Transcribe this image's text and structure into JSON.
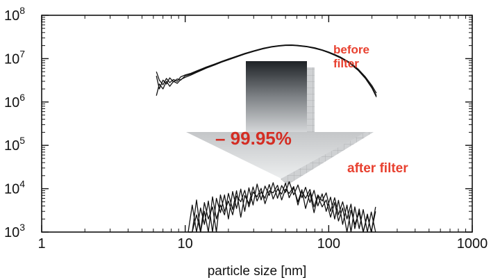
{
  "chart_data": {
    "type": "line",
    "title": "",
    "xlabel": "particle size [nm]",
    "ylabel": "",
    "x_scale": "log",
    "y_scale": "log",
    "xlim": [
      1,
      1000
    ],
    "ylim": [
      1000,
      100000000
    ],
    "grid": false,
    "x_ticks": [
      {
        "value": 1,
        "label": "1"
      },
      {
        "value": 10,
        "label": "10"
      },
      {
        "value": 100,
        "label": "100"
      },
      {
        "value": 1000,
        "label": "1000"
      }
    ],
    "y_ticks": [
      {
        "value": 1000,
        "base": "10",
        "exp": "3"
      },
      {
        "value": 10000,
        "base": "10",
        "exp": "4"
      },
      {
        "value": 100000,
        "base": "10",
        "exp": "5"
      },
      {
        "value": 1000000,
        "base": "10",
        "exp": "6"
      },
      {
        "value": 10000000,
        "base": "10",
        "exp": "7"
      },
      {
        "value": 100000000,
        "base": "10",
        "exp": "8"
      }
    ],
    "annotations": {
      "before_line1": "before",
      "before_line2": "filter",
      "after": "after filter",
      "reduction": "– 99.95%"
    },
    "series": [
      {
        "x": [
          6.3,
          6.6,
          7.0,
          7.4,
          7.8,
          8.3,
          8.8,
          9.3,
          10,
          11,
          12,
          13,
          14,
          16,
          18,
          20,
          23,
          26,
          30,
          35,
          40,
          45,
          50,
          55,
          60,
          70,
          80,
          90,
          100,
          110,
          120,
          140,
          160,
          180,
          200,
          215
        ],
        "y": [
          5000000,
          3200000,
          2500000,
          3500000,
          2800000,
          3300000,
          3000000,
          3800000,
          4200000,
          4600000,
          5200000,
          5800000,
          6400000,
          7500000,
          8700000,
          9800000,
          11500000,
          13200000,
          15200000,
          17400000,
          19000000,
          20000000,
          20600000,
          20700000,
          20400000,
          19300000,
          17800000,
          16000000,
          14200000,
          12500000,
          11000000,
          8200000,
          5800000,
          3800000,
          2400000,
          1600000
        ]
      },
      {
        "x": [
          6.3,
          6.6,
          7.0,
          7.4,
          7.8,
          8.3,
          8.8,
          9.3,
          10,
          11,
          12,
          13,
          14,
          16,
          18,
          20,
          23,
          26,
          30,
          35,
          40,
          45,
          50,
          55,
          60,
          70,
          80,
          90,
          100,
          110,
          120,
          140,
          160,
          180,
          200,
          215
        ],
        "y": [
          4000000,
          2000000,
          3200000,
          2600000,
          3600000,
          2900000,
          3400000,
          3200000,
          4000000,
          4400000,
          5000000,
          5600000,
          6200000,
          7300000,
          8500000,
          9600000,
          11200000,
          13000000,
          15000000,
          17100000,
          18800000,
          19800000,
          20400000,
          20500000,
          20200000,
          19100000,
          17500000,
          15800000,
          14000000,
          12300000,
          10800000,
          8000000,
          5600000,
          3600000,
          2200000,
          1400000
        ]
      },
      {
        "x": [
          6.3,
          6.6,
          7.0,
          7.4,
          7.8,
          8.3,
          8.8,
          9.3,
          10,
          11,
          12,
          13,
          14,
          16,
          18,
          20,
          23,
          26,
          30,
          35,
          40,
          45,
          50,
          55,
          60,
          70,
          80,
          90,
          100,
          110,
          120,
          140,
          160,
          180,
          200,
          215
        ],
        "y": [
          1400000,
          2600000,
          2000000,
          3000000,
          2300000,
          3000000,
          2700000,
          3300000,
          3700000,
          4200000,
          4800000,
          5400000,
          6000000,
          7100000,
          8300000,
          9400000,
          11000000,
          12700000,
          14700000,
          16800000,
          18500000,
          19500000,
          20100000,
          20200000,
          19900000,
          18800000,
          17200000,
          15500000,
          13700000,
          12000000,
          10500000,
          7800000,
          5400000,
          3500000,
          2100000,
          1300000
        ]
      },
      {
        "x": [
          10.5,
          11.2,
          12,
          12.8,
          13.6,
          14.5,
          15.5,
          16.5,
          17.6,
          18.8,
          20,
          21.4,
          22.8,
          24.4,
          26,
          27.8,
          29.7,
          31.7,
          33.8,
          36,
          38.5,
          41,
          44,
          47,
          50,
          53,
          57,
          61,
          65,
          69,
          74,
          79,
          84,
          90,
          96,
          103,
          110,
          117,
          125,
          134,
          143,
          152,
          163,
          174,
          186,
          198,
          212
        ],
        "y": [
          1000,
          1000,
          5500,
          1000,
          3000,
          1000,
          6500,
          2000,
          4200,
          2500,
          7800,
          3300,
          9000,
          2200,
          7000,
          4500,
          11000,
          5200,
          8500,
          6000,
          12500,
          5800,
          9800,
          7500,
          13500,
          6200,
          10500,
          5000,
          9500,
          3500,
          8000,
          2800,
          6800,
          3800,
          5500,
          2200,
          4800,
          1800,
          3600,
          1000,
          3200,
          1500,
          2800,
          1000,
          2400,
          1000,
          3000
        ]
      },
      {
        "x": [
          10.5,
          11.2,
          12,
          12.8,
          13.6,
          14.5,
          15.5,
          16.5,
          17.6,
          18.8,
          20,
          21.4,
          22.8,
          24.4,
          26,
          27.8,
          29.7,
          31.7,
          33.8,
          36,
          38.5,
          41,
          44,
          47,
          50,
          53,
          57,
          61,
          65,
          69,
          74,
          79,
          84,
          90,
          96,
          103,
          110,
          117,
          125,
          134,
          143,
          152,
          163,
          174,
          186,
          198,
          212
        ],
        "y": [
          1000,
          4200,
          1000,
          3600,
          1500,
          5200,
          1000,
          6000,
          2800,
          7200,
          2000,
          8600,
          3500,
          9800,
          3000,
          10500,
          4200,
          12800,
          5500,
          11500,
          7000,
          13800,
          6000,
          11800,
          8200,
          14500,
          7200,
          12200,
          6200,
          10800,
          4800,
          9200,
          4000,
          7600,
          3000,
          6400,
          2000,
          5400,
          1500,
          4200,
          1000,
          3800,
          1200,
          3300,
          1000,
          2900,
          1000
        ]
      },
      {
        "x": [
          10.5,
          11.2,
          12,
          12.8,
          13.6,
          14.5,
          15.5,
          16.5,
          17.6,
          18.8,
          20,
          21.4,
          22.8,
          24.4,
          26,
          27.8,
          29.7,
          31.7,
          33.8,
          36,
          38.5,
          41,
          44,
          47,
          50,
          53,
          57,
          61,
          65,
          69,
          74,
          79,
          84,
          90,
          96,
          103,
          110,
          117,
          125,
          134,
          143,
          152,
          163,
          174,
          186,
          198,
          212
        ],
        "y": [
          1000,
          1000,
          2500,
          1000,
          4800,
          2000,
          3800,
          1000,
          7200,
          3000,
          5200,
          2500,
          6800,
          5000,
          9200,
          3800,
          8400,
          6500,
          10200,
          4500,
          9000,
          8000,
          12000,
          5500,
          9800,
          7800,
          11200,
          4200,
          8800,
          6000,
          9600,
          3800,
          7200,
          5200,
          8000,
          3000,
          6200,
          2500,
          5000,
          2000,
          4400,
          1200,
          3400,
          1000,
          2600,
          1000,
          3800
        ]
      }
    ]
  }
}
